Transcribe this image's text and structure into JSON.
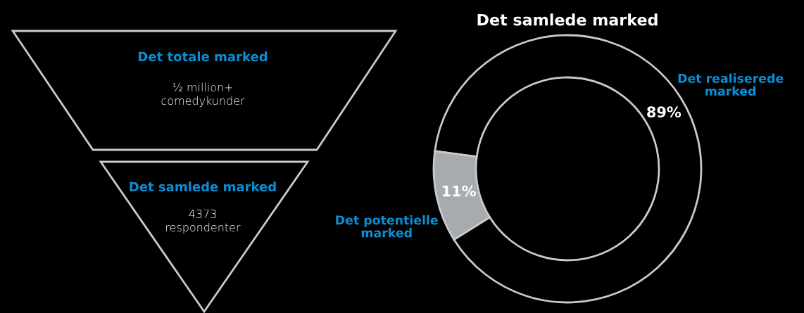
{
  "chart_data": [
    {
      "type": "other",
      "categories": [
        "Det totale marked",
        "Det samlede marked"
      ],
      "annotations": [
        "½ million+\ncomedykunder",
        "4373\nrespondenter"
      ]
    },
    {
      "type": "donut",
      "title": "Det samlede marked",
      "categories": [
        "Det realiserede\nmarked",
        "Det potentielle\nmarked"
      ],
      "values": [
        89,
        11
      ],
      "colors": [
        "#000000",
        "#a7abae"
      ],
      "value_labels": [
        "89%",
        "11%"
      ]
    }
  ]
}
